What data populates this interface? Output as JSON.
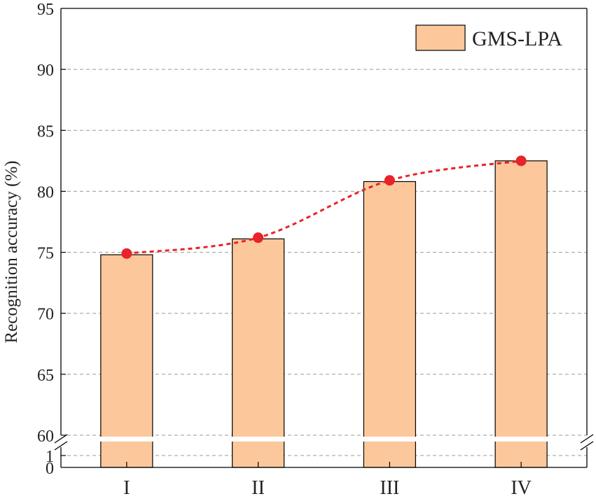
{
  "chart_data": {
    "type": "bar",
    "title": "",
    "xlabel": "",
    "ylabel": "Recognition accuracy (%)",
    "categories": [
      "I",
      "II",
      "III",
      "IV"
    ],
    "series": [
      {
        "name": "GMS-LPA",
        "values": [
          74.8,
          76.1,
          80.8,
          82.5
        ]
      }
    ],
    "trend_points": [
      74.9,
      76.2,
      80.9,
      82.5
    ],
    "ylim": [
      0,
      95
    ],
    "axis_break": {
      "from": 1,
      "to": 60
    },
    "yticks_upper": [
      60,
      65,
      70,
      75,
      80,
      85,
      90,
      95
    ],
    "yticks_lower": [
      0,
      1
    ],
    "yticks_upper_labels": [
      "60",
      "65",
      "70",
      "75",
      "80",
      "85",
      "90",
      "95"
    ],
    "yticks_lower_labels": [
      "0",
      "1"
    ],
    "grid": true,
    "legend_position": "top-right",
    "colors": {
      "bar": "#fcc89b",
      "trend": "#e8232a",
      "grid": "#9a9a9a",
      "axis": "#000000"
    }
  }
}
